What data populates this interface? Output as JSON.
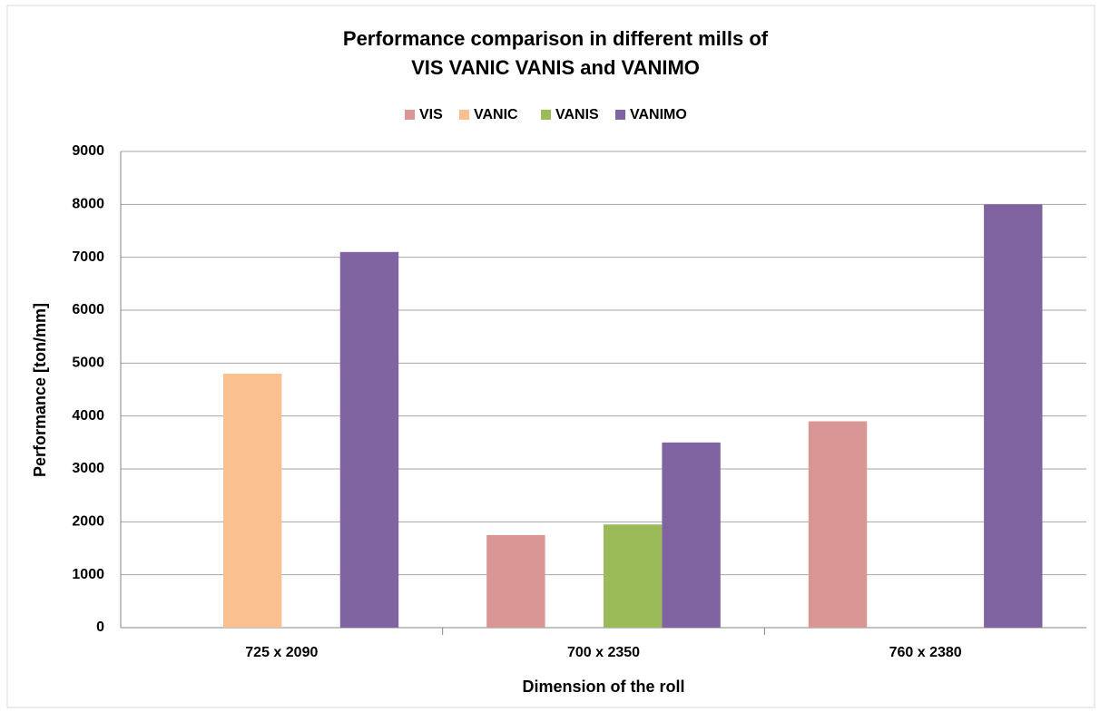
{
  "chart_data": {
    "type": "bar",
    "title": [
      "Performance comparison in different mills of",
      "VIS VANIC VANIS and VANIMO"
    ],
    "x_label": "Dimension  of the roll",
    "y_label": "Performance [ton/mm]",
    "categories": [
      "725 x 2090",
      "700 x 2350",
      "760 x 2380"
    ],
    "series": [
      {
        "name": "VIS",
        "color": "#d99694",
        "values": [
          null,
          1750,
          3900
        ]
      },
      {
        "name": "VANIC",
        "color": "#fac090",
        "values": [
          4800,
          null,
          null
        ]
      },
      {
        "name": "VANIS",
        "color": "#9bbb59",
        "values": [
          null,
          1950,
          null
        ]
      },
      {
        "name": "VANIMO",
        "color": "#8064a2",
        "values": [
          7100,
          3500,
          8000
        ]
      }
    ],
    "ylim": [
      0,
      9000
    ],
    "yticks": [
      0,
      1000,
      2000,
      3000,
      4000,
      5000,
      6000,
      7000,
      8000,
      9000
    ],
    "grid": true,
    "legend": "top"
  }
}
